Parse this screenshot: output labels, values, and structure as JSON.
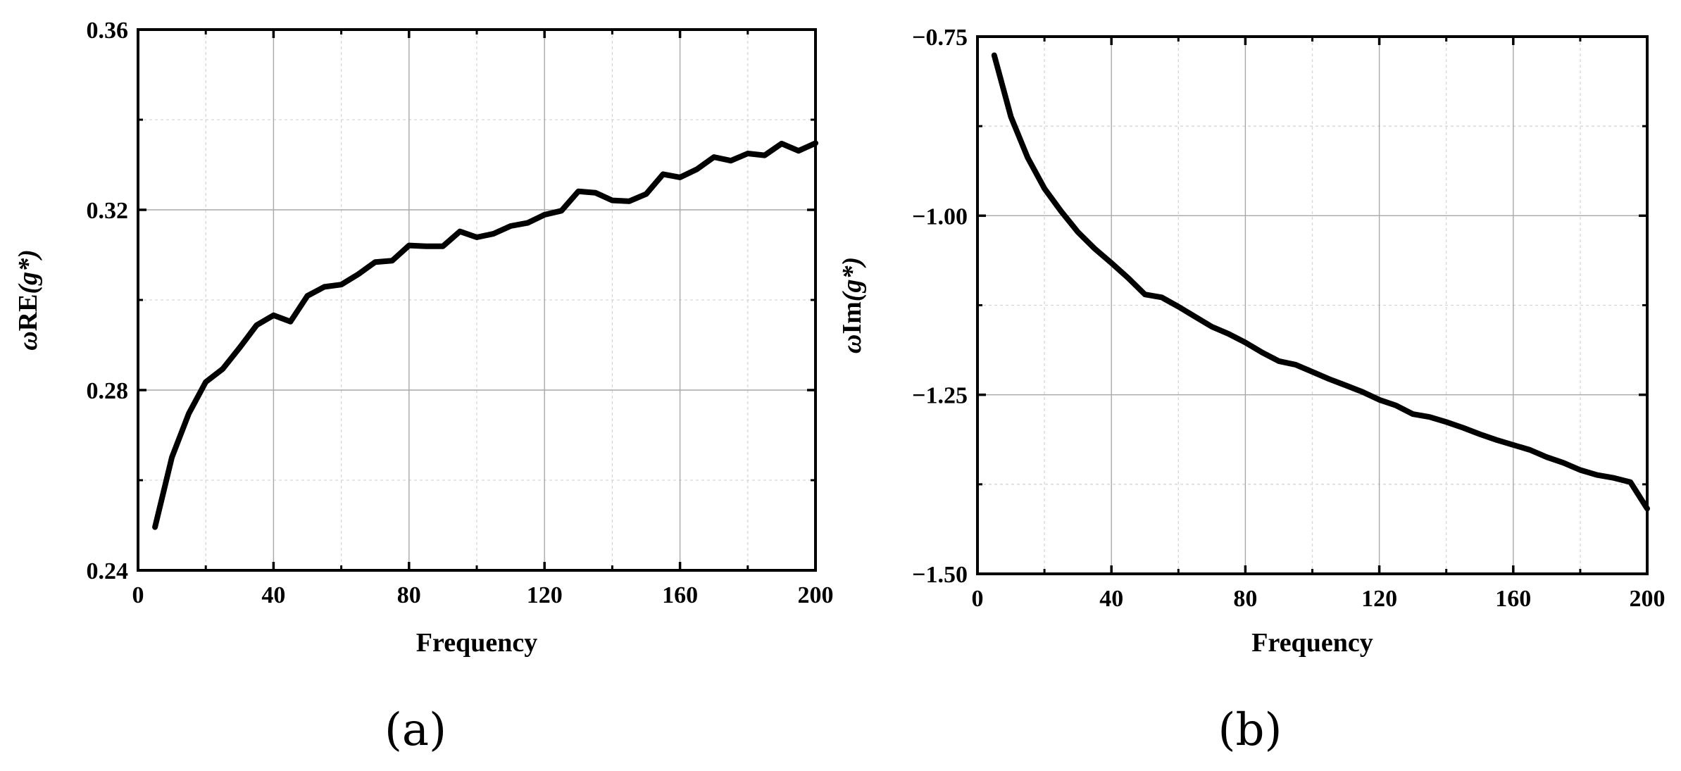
{
  "chart_data": [
    {
      "type": "line",
      "panel_label": "(a)",
      "xlabel": "Frequency",
      "ylabel_prefix": "ω",
      "ylabel_main": "RE",
      "ylabel_arg": "(g*)",
      "xlim": [
        0,
        200
      ],
      "ylim": [
        0.24,
        0.36
      ],
      "x_ticks": [
        0,
        40,
        80,
        120,
        160,
        200
      ],
      "x_tick_labels": [
        "0",
        "40",
        "80",
        "120",
        "160",
        "200"
      ],
      "y_ticks": [
        0.24,
        0.28,
        0.32,
        0.36
      ],
      "y_tick_labels": [
        "0.24",
        "0.28",
        "0.32",
        "0.36"
      ],
      "grid": true,
      "line_color": "#000000",
      "series": [
        {
          "x": [
            5,
            10,
            15,
            20,
            25,
            30,
            35,
            40,
            45,
            50,
            55,
            60,
            65,
            70,
            75,
            80,
            85,
            90,
            95,
            100,
            105,
            110,
            115,
            120,
            125,
            130,
            135,
            140,
            145,
            150,
            155,
            160,
            165,
            170,
            175,
            180,
            185,
            190,
            195,
            200
          ],
          "y": [
            0.2496,
            0.2651,
            0.2748,
            0.2818,
            0.2847,
            0.2894,
            0.2944,
            0.2966,
            0.2952,
            0.3009,
            0.3029,
            0.3034,
            0.3057,
            0.3084,
            0.3087,
            0.3121,
            0.3119,
            0.3119,
            0.3152,
            0.3139,
            0.3147,
            0.3164,
            0.3171,
            0.3189,
            0.3198,
            0.3241,
            0.3238,
            0.3221,
            0.3219,
            0.3235,
            0.3279,
            0.3272,
            0.329,
            0.3317,
            0.3309,
            0.3325,
            0.3321,
            0.3347,
            0.3331,
            0.3348
          ]
        }
      ]
    },
    {
      "type": "line",
      "panel_label": "(b)",
      "xlabel": "Frequency",
      "ylabel_prefix": "ω",
      "ylabel_main": "Im",
      "ylabel_arg": "(g*)",
      "xlim": [
        0,
        200
      ],
      "ylim": [
        -1.5,
        -0.75
      ],
      "x_ticks": [
        0,
        40,
        80,
        120,
        160,
        200
      ],
      "x_tick_labels": [
        "0",
        "40",
        "80",
        "120",
        "160",
        "200"
      ],
      "y_ticks": [
        -1.5,
        -1.25,
        -1.0,
        -0.75
      ],
      "y_tick_labels": [
        "−1.50",
        "−1.25",
        "−1.00",
        "−0.75"
      ],
      "grid": true,
      "line_color": "#000000",
      "series": [
        {
          "x": [
            5,
            10,
            15,
            20,
            25,
            30,
            35,
            40,
            45,
            50,
            55,
            60,
            65,
            70,
            75,
            80,
            85,
            90,
            95,
            100,
            105,
            110,
            115,
            120,
            125,
            130,
            135,
            140,
            145,
            150,
            155,
            160,
            165,
            170,
            175,
            180,
            185,
            190,
            195,
            200
          ],
          "y": [
            -0.776,
            -0.862,
            -0.919,
            -0.962,
            -0.994,
            -1.023,
            -1.046,
            -1.066,
            -1.087,
            -1.11,
            -1.114,
            -1.127,
            -1.141,
            -1.155,
            -1.165,
            -1.177,
            -1.191,
            -1.203,
            -1.208,
            -1.218,
            -1.228,
            -1.237,
            -1.246,
            -1.257,
            -1.265,
            -1.277,
            -1.281,
            -1.288,
            -1.296,
            -1.305,
            -1.313,
            -1.32,
            -1.327,
            -1.337,
            -1.345,
            -1.355,
            -1.362,
            -1.366,
            -1.372,
            -1.409
          ]
        }
      ]
    }
  ]
}
